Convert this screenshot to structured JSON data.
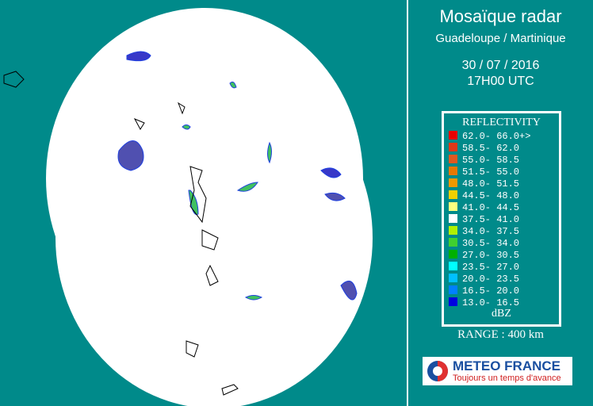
{
  "header": {
    "title": "Mosaïque radar",
    "subtitle": "Guadeloupe / Martinique",
    "date": "30 / 07 / 2016",
    "time": "17H00 UTC"
  },
  "legend": {
    "title": "REFLECTIVITY",
    "unit": "dBZ",
    "entries": [
      {
        "label": "62.0- 66.0+>",
        "color": "#e80000"
      },
      {
        "label": "58.5- 62.0",
        "color": "#e03818"
      },
      {
        "label": "55.0- 58.5",
        "color": "#e05820"
      },
      {
        "label": "51.5- 55.0",
        "color": "#e87800"
      },
      {
        "label": "48.0- 51.5",
        "color": "#f09800"
      },
      {
        "label": "44.5- 48.0",
        "color": "#f0d000"
      },
      {
        "label": "41.0- 44.5",
        "color": "#ffff80"
      },
      {
        "label": "37.5- 41.0",
        "color": "#ffffff"
      },
      {
        "label": "34.0- 37.5",
        "color": "#b0f000"
      },
      {
        "label": "30.5- 34.0",
        "color": "#40d030"
      },
      {
        "label": "27.0- 30.5",
        "color": "#00b000"
      },
      {
        "label": "23.5- 27.0",
        "color": "#00ffff"
      },
      {
        "label": "20.0- 23.5",
        "color": "#00c0ff"
      },
      {
        "label": "16.5- 20.0",
        "color": "#0080ff"
      },
      {
        "label": "13.0- 16.5",
        "color": "#0000e0"
      }
    ]
  },
  "range": "RANGE : 400 km",
  "logo": {
    "name": "METEO FRANCE",
    "slogan": "Toujours un temps d'avance"
  }
}
